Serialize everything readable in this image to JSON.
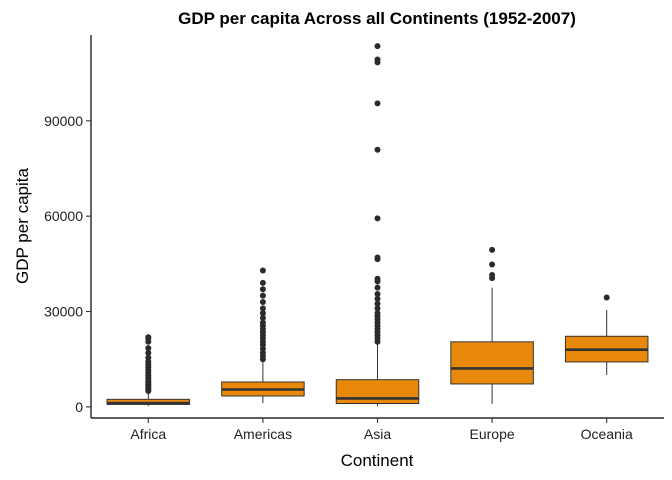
{
  "chart_data": {
    "type": "boxplot",
    "title": "GDP per capita Across all Continents (1952-2007)",
    "xlabel": "Continent",
    "ylabel": "GDP per capita",
    "ylim": [
      -3500,
      117000
    ],
    "y_ticks": [
      0,
      30000,
      60000,
      90000
    ],
    "y_tick_labels": [
      "0",
      "30000",
      "60000",
      "90000"
    ],
    "grid": false,
    "fill_color": "#e8890c",
    "categories": [
      "Africa",
      "Americas",
      "Asia",
      "Europe",
      "Oceania"
    ],
    "boxes": [
      {
        "category": "Africa",
        "lower_whisker": 241,
        "q1": 761,
        "median": 1192,
        "q3": 2377,
        "upper_whisker": 4800,
        "outliers": [
          5000,
          5400,
          5800,
          6200,
          6700,
          7100,
          7600,
          8000,
          8700,
          9300,
          10000,
          10800,
          11600,
          12500,
          13300,
          14200,
          15500,
          17000,
          18500,
          20500,
          21500,
          21900
        ]
      },
      {
        "category": "Americas",
        "lower_whisker": 1202,
        "q1": 3428,
        "median": 5466,
        "q3": 7830,
        "upper_whisker": 14400,
        "outliers": [
          15000,
          16000,
          17000,
          18300,
          19500,
          20500,
          21500,
          22500,
          23500,
          24500,
          25500,
          26500,
          28000,
          29500,
          31000,
          33000,
          35000,
          37000,
          39000,
          42900
        ]
      },
      {
        "category": "Asia",
        "lower_whisker": 331,
        "q1": 1057,
        "median": 2647,
        "q3": 8549,
        "upper_whisker": 19700,
        "outliers": [
          20500,
          21500,
          22500,
          23500,
          24500,
          25500,
          26500,
          27500,
          28500,
          29500,
          31000,
          32500,
          34000,
          35500,
          37500,
          39500,
          40300,
          46500,
          47000,
          59300,
          80900,
          95500,
          108400,
          109300,
          113500
        ]
      },
      {
        "category": "Europe",
        "lower_whisker": 974,
        "q1": 7213,
        "median": 12082,
        "q3": 20461,
        "upper_whisker": 37500,
        "outliers": [
          40500,
          41500,
          44800,
          49400
        ]
      },
      {
        "category": "Oceania",
        "lower_whisker": 10040,
        "q1": 14142,
        "median": 17983,
        "q3": 22214,
        "upper_whisker": 30500,
        "outliers": [
          34400
        ]
      }
    ]
  }
}
